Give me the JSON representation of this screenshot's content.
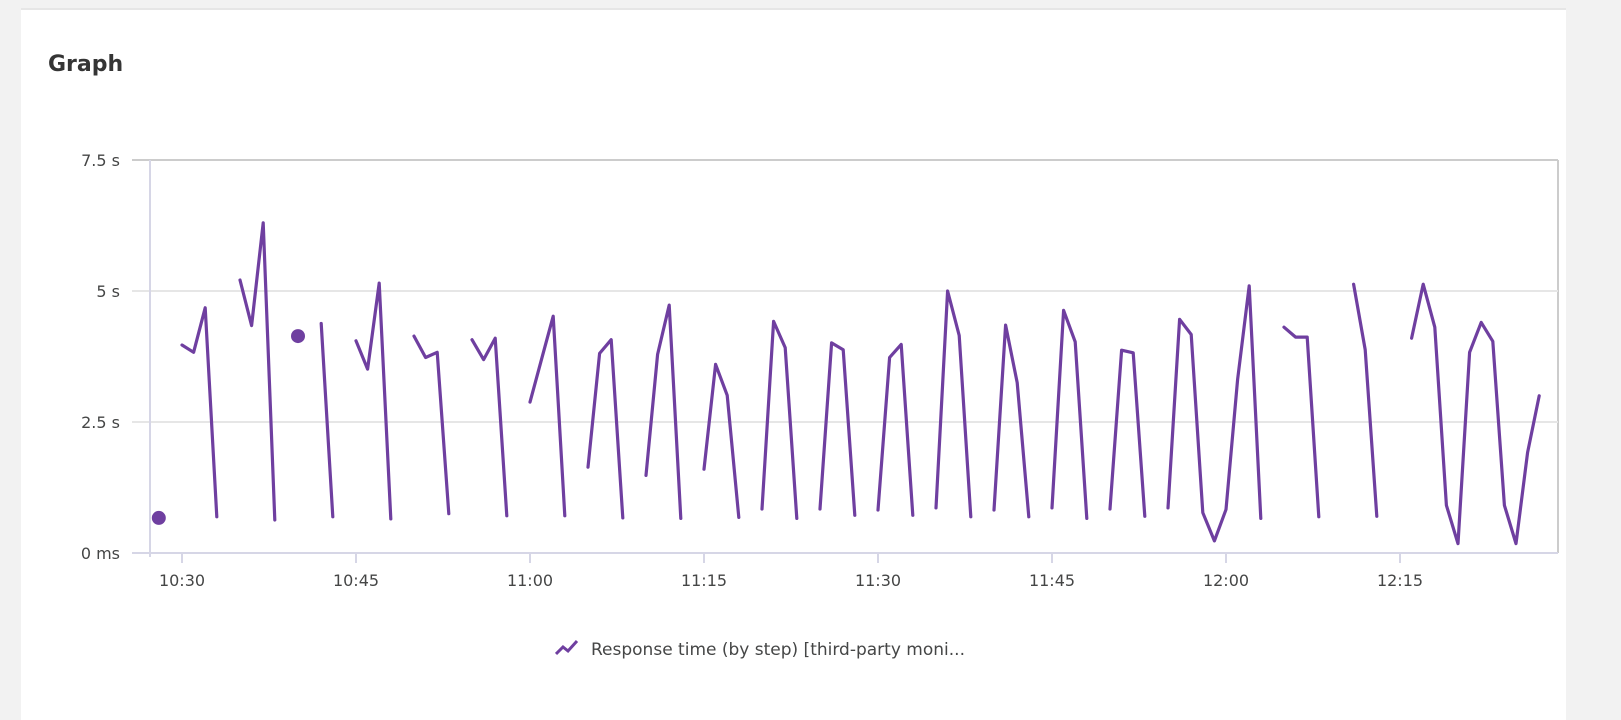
{
  "card": {
    "title": "Graph"
  },
  "chart_data": {
    "type": "line",
    "title": "",
    "xlabel": "",
    "ylabel": "",
    "x_ticks": [
      "10:30",
      "10:45",
      "11:00",
      "11:15",
      "11:30",
      "11:45",
      "12:00",
      "12:15"
    ],
    "y_ticks": [
      {
        "value": 0,
        "label": "0 ms"
      },
      {
        "value": 2.5,
        "label": "2.5 s"
      },
      {
        "value": 5,
        "label": "5 s"
      },
      {
        "value": 7.5,
        "label": "7.5 s"
      }
    ],
    "xlim": [
      "10:27",
      "12:29"
    ],
    "ylim": [
      0,
      7.5
    ],
    "y_unit": "s",
    "grid": true,
    "legend_position": "bottom",
    "colors": {
      "series": "#6f3fa0",
      "grid": "#e6e6e6",
      "axis": "#d6d6e6"
    },
    "series": [
      {
        "name": "Response time (by step) [third-party moni...",
        "legend_icon": "line-chart-icon",
        "points": [
          [
            "10:28",
            0.67
          ],
          [
            "10:29",
            null
          ],
          [
            "10:30",
            3.97
          ],
          [
            "10:31",
            3.83
          ],
          [
            "10:32",
            4.68
          ],
          [
            "10:33",
            0.69
          ],
          [
            "10:34",
            null
          ],
          [
            "10:35",
            5.21
          ],
          [
            "10:36",
            4.34
          ],
          [
            "10:37",
            6.3
          ],
          [
            "10:38",
            0.63
          ],
          [
            "10:39",
            null
          ],
          [
            "10:40",
            4.14
          ],
          [
            "10:41",
            null
          ],
          [
            "10:42",
            4.38
          ],
          [
            "10:43",
            0.69
          ],
          [
            "10:44",
            null
          ],
          [
            "10:45",
            4.05
          ],
          [
            "10:46",
            3.51
          ],
          [
            "10:47",
            5.15
          ],
          [
            "10:48",
            0.65
          ],
          [
            "10:49",
            null
          ],
          [
            "10:50",
            4.14
          ],
          [
            "10:51",
            3.73
          ],
          [
            "10:52",
            3.83
          ],
          [
            "10:53",
            0.75
          ],
          [
            "10:54",
            null
          ],
          [
            "10:55",
            4.07
          ],
          [
            "10:56",
            3.69
          ],
          [
            "10:57",
            4.1
          ],
          [
            "10:58",
            0.71
          ],
          [
            "10:59",
            null
          ],
          [
            "11:00",
            2.88
          ],
          [
            "11:01",
            3.7
          ],
          [
            "11:02",
            4.52
          ],
          [
            "11:03",
            0.71
          ],
          [
            "11:04",
            null
          ],
          [
            "11:05",
            1.64
          ],
          [
            "11:06",
            3.81
          ],
          [
            "11:07",
            4.07
          ],
          [
            "11:08",
            0.67
          ],
          [
            "11:09",
            null
          ],
          [
            "11:10",
            1.48
          ],
          [
            "11:11",
            3.79
          ],
          [
            "11:12",
            4.73
          ],
          [
            "11:13",
            0.66
          ],
          [
            "11:14",
            null
          ],
          [
            "11:15",
            1.6
          ],
          [
            "11:16",
            3.6
          ],
          [
            "11:17",
            3.01
          ],
          [
            "11:18",
            0.68
          ],
          [
            "11:19",
            null
          ],
          [
            "11:20",
            0.84
          ],
          [
            "11:21",
            4.42
          ],
          [
            "11:22",
            3.92
          ],
          [
            "11:23",
            0.66
          ],
          [
            "11:24",
            null
          ],
          [
            "11:25",
            0.84
          ],
          [
            "11:26",
            4.01
          ],
          [
            "11:27",
            3.88
          ],
          [
            "11:28",
            0.72
          ],
          [
            "11:29",
            null
          ],
          [
            "11:30",
            0.82
          ],
          [
            "11:31",
            3.73
          ],
          [
            "11:32",
            3.98
          ],
          [
            "11:33",
            0.72
          ],
          [
            "11:34",
            null
          ],
          [
            "11:35",
            0.86
          ],
          [
            "11:36",
            5.0
          ],
          [
            "11:37",
            4.15
          ],
          [
            "11:38",
            0.69
          ],
          [
            "11:39",
            null
          ],
          [
            "11:40",
            0.82
          ],
          [
            "11:41",
            4.35
          ],
          [
            "11:42",
            3.25
          ],
          [
            "11:43",
            0.69
          ],
          [
            "11:44",
            null
          ],
          [
            "11:45",
            0.86
          ],
          [
            "11:46",
            4.63
          ],
          [
            "11:47",
            4.03
          ],
          [
            "11:48",
            0.66
          ],
          [
            "11:49",
            null
          ],
          [
            "11:50",
            0.84
          ],
          [
            "11:51",
            3.87
          ],
          [
            "11:52",
            3.82
          ],
          [
            "11:53",
            0.7
          ],
          [
            "11:54",
            null
          ],
          [
            "11:55",
            0.86
          ],
          [
            "11:56",
            4.46
          ],
          [
            "11:57",
            4.17
          ],
          [
            "11:58",
            0.77
          ],
          [
            "11:59",
            0.23
          ],
          [
            "12:00",
            0.83
          ],
          [
            "12:01",
            3.31
          ],
          [
            "12:02",
            5.1
          ],
          [
            "12:03",
            0.66
          ],
          [
            "12:04",
            null
          ],
          [
            "12:05",
            4.31
          ],
          [
            "12:06",
            4.12
          ],
          [
            "12:07",
            4.12
          ],
          [
            "12:08",
            0.69
          ],
          [
            "12:09",
            null
          ],
          [
            "12:10",
            null
          ],
          [
            "12:11",
            5.13
          ],
          [
            "12:12",
            3.88
          ],
          [
            "12:13",
            0.7
          ],
          [
            "12:14",
            null
          ],
          [
            "12:15",
            null
          ],
          [
            "12:16",
            4.1
          ],
          [
            "12:17",
            5.13
          ],
          [
            "12:18",
            4.31
          ],
          [
            "12:19",
            0.91
          ],
          [
            "12:20",
            0.18
          ],
          [
            "12:21",
            3.83
          ],
          [
            "12:22",
            4.4
          ],
          [
            "12:23",
            4.04
          ],
          [
            "12:24",
            0.91
          ],
          [
            "12:25",
            0.18
          ],
          [
            "12:26",
            1.92
          ],
          [
            "12:27",
            3.0
          ]
        ]
      }
    ]
  }
}
